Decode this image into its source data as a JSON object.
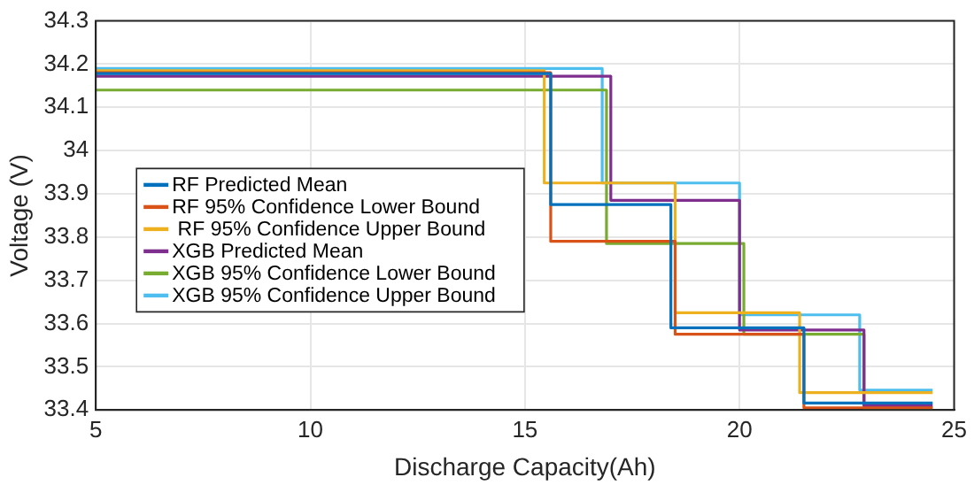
{
  "chart_data": {
    "type": "step",
    "xlabel": "Discharge Capacity(Ah)",
    "ylabel": "Voltage (V)",
    "xlim": [
      5,
      25
    ],
    "xticks": [
      5,
      10,
      15,
      20,
      25
    ],
    "ylim": [
      33.4,
      34.3
    ],
    "yticks": [
      33.4,
      33.5,
      33.6,
      33.7,
      33.8,
      33.9,
      34,
      34.1,
      34.2,
      34.3
    ],
    "grid": true,
    "legend": "center left",
    "series": [
      {
        "name": "RF Predicted Mean",
        "color": "#0072bd",
        "x": [
          5,
          15.6,
          18.4,
          21.5,
          24.5
        ],
        "values": [
          34.178,
          33.875,
          33.59,
          33.416,
          33.416
        ]
      },
      {
        "name": "RF 95% Confidence Lower Bound",
        "color": "#d95319",
        "x": [
          5,
          15.6,
          18.5,
          21.5,
          24.5
        ],
        "values": [
          34.18,
          33.79,
          33.575,
          33.405,
          33.405
        ]
      },
      {
        "name": " RF 95% Confidence Upper Bound",
        "color": "#edb120",
        "x": [
          5,
          15.45,
          18.5,
          21.4,
          24.5
        ],
        "values": [
          34.185,
          33.925,
          33.625,
          33.44,
          33.44
        ]
      },
      {
        "name": "XGB Predicted Mean",
        "color": "#7e2f8e",
        "x": [
          5,
          17,
          20,
          22.9,
          24.5
        ],
        "values": [
          34.172,
          33.885,
          33.585,
          33.41,
          33.41
        ]
      },
      {
        "name": "XGB 95% Confidence Lower Bound",
        "color": "#77ac30",
        "x": [
          5,
          16.9,
          20.1,
          22.9,
          24.5
        ],
        "values": [
          34.14,
          33.785,
          33.575,
          33.404,
          33.404
        ]
      },
      {
        "name": "XGB 95% Confidence Upper Bound",
        "color": "#4dbeee",
        "x": [
          5,
          16.8,
          20,
          22.8,
          24.5
        ],
        "values": [
          34.19,
          33.925,
          33.62,
          33.446,
          33.446
        ]
      }
    ]
  }
}
